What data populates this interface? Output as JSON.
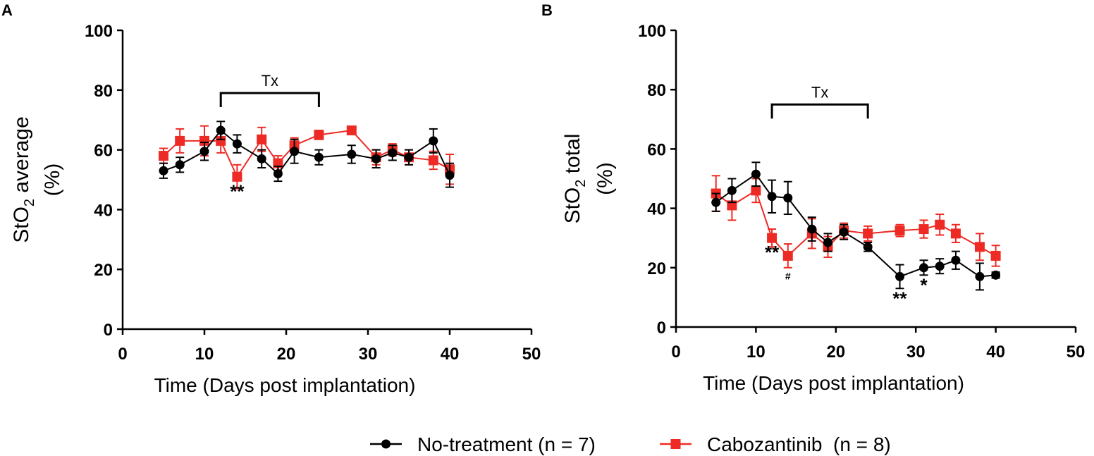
{
  "panels": [
    {
      "label": "A",
      "chart_data": {
        "type": "line",
        "title": "",
        "xlabel": "Time (Days post implantation)",
        "ylabel_main": "StO",
        "ylabel_sub": "2",
        "ylabel_rest": " average",
        "ylabel_line2": "(%)",
        "xlim": [
          0,
          50
        ],
        "ylim": [
          0,
          100
        ],
        "xticks": [
          0,
          10,
          20,
          30,
          40,
          50
        ],
        "yticks": [
          0,
          20,
          40,
          60,
          80,
          100
        ],
        "treatment": {
          "label": "Tx",
          "start": 12,
          "end": 24,
          "y": 79
        },
        "series": [
          {
            "name": "No-treatment (n = 7)",
            "color": "#000000",
            "marker": "circle",
            "x": [
              5,
              7,
              10,
              12,
              14,
              17,
              19,
              21,
              24,
              28,
              31,
              33,
              35,
              38,
              40
            ],
            "y": [
              53,
              55,
              59.5,
              66.5,
              62,
              57,
              52,
              59.5,
              57.5,
              58.5,
              57,
              59,
              57.5,
              63,
              51.5
            ],
            "err": [
              2.5,
              2.5,
              3,
              3,
              3,
              3,
              2.5,
              4,
              2.5,
              3,
              3,
              2.5,
              2.5,
              4,
              4
            ]
          },
          {
            "name": "Cabozantinib (n = 8)",
            "color": "#ee2a24",
            "marker": "square",
            "x": [
              5,
              7,
              10,
              12,
              14,
              17,
              19,
              21,
              24,
              28,
              31,
              33,
              35,
              38,
              40
            ],
            "y": [
              58,
              63,
              63,
              63,
              51,
              63.5,
              55.5,
              61.5,
              65,
              66.5,
              57.5,
              60,
              57.5,
              56.5,
              53.5
            ],
            "err": [
              2.5,
              4,
              5,
              4,
              4,
              4,
              2.5,
              2.5,
              1.5,
              1,
              2.5,
              2,
              2.5,
              3,
              5
            ]
          }
        ],
        "annotations": [
          {
            "text": "**",
            "x": 14,
            "y": 44,
            "size": "large"
          }
        ]
      }
    },
    {
      "label": "B",
      "chart_data": {
        "type": "line",
        "title": "",
        "xlabel": "Time (Days post implantation)",
        "ylabel_main": "StO",
        "ylabel_sub": "2",
        "ylabel_rest": " total",
        "ylabel_line2": "(%)",
        "xlim": [
          0,
          50
        ],
        "ylim": [
          0,
          100
        ],
        "xticks": [
          0,
          10,
          20,
          30,
          40,
          50
        ],
        "yticks": [
          0,
          20,
          40,
          60,
          80,
          100
        ],
        "treatment": {
          "label": "Tx",
          "start": 12,
          "end": 24,
          "y": 75
        },
        "series": [
          {
            "name": "No-treatment (n = 7)",
            "color": "#000000",
            "marker": "circle",
            "x": [
              5,
              7,
              10,
              12,
              14,
              17,
              19,
              21,
              24,
              28,
              31,
              33,
              35,
              38,
              40
            ],
            "y": [
              42,
              46,
              51.5,
              44,
              43.5,
              33,
              28.5,
              32,
              27,
              17,
              20,
              20.5,
              22.5,
              17,
              17.5
            ],
            "err": [
              3,
              4,
              4,
              5.5,
              5.5,
              4,
              3,
              2.5,
              1.5,
              4,
              2.5,
              2.5,
              3,
              4.5,
              1
            ]
          },
          {
            "name": "Cabozantinib (n = 8)",
            "color": "#ee2a24",
            "marker": "square",
            "x": [
              5,
              7,
              10,
              12,
              14,
              17,
              19,
              21,
              24,
              28,
              31,
              33,
              35,
              38,
              40
            ],
            "y": [
              45,
              41,
              46,
              30,
              24,
              31.5,
              27,
              32.5,
              31.5,
              32.5,
              33,
              34.5,
              31.5,
              27,
              24
            ],
            "err": [
              6,
              5,
              4,
              3,
              4,
              5,
              3.5,
              2.5,
              2.5,
              2,
              3,
              3.5,
              3,
              4.5,
              3.5
            ]
          }
        ],
        "annotations": [
          {
            "text": "**",
            "x": 12,
            "y": 23,
            "size": "large"
          },
          {
            "text": "#",
            "x": 14,
            "y": 16,
            "size": "small"
          },
          {
            "text": "**",
            "x": 28,
            "y": 7.5,
            "size": "large"
          },
          {
            "text": "*",
            "x": 31,
            "y": 12,
            "size": "large"
          }
        ]
      }
    }
  ],
  "legend": {
    "items": [
      {
        "label": "No-treatment (n = 7)",
        "color": "#000000",
        "marker": "circle"
      },
      {
        "label": "Cabozantinib  (n = 8)",
        "color": "#ee2a24",
        "marker": "square"
      }
    ]
  }
}
